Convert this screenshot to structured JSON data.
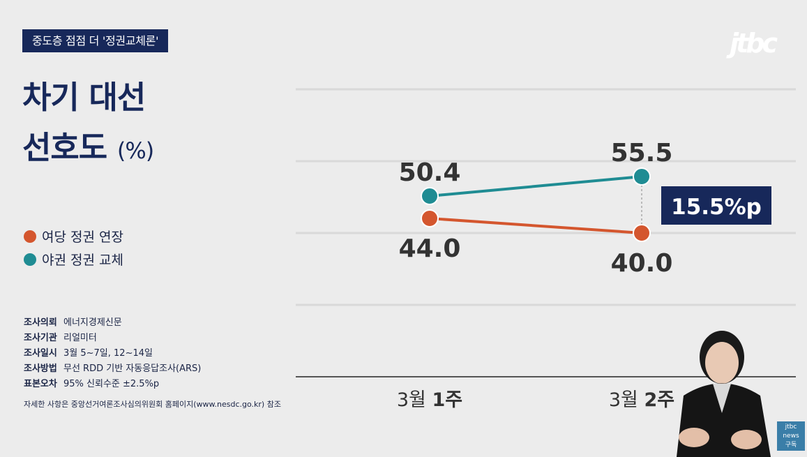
{
  "header_tag": "중도층 점점 더 '정권교체론'",
  "logo": "jtbc",
  "title": {
    "line1": "차기 대선",
    "line2": "선호도",
    "unit": "(%)"
  },
  "legend": [
    {
      "label": "여당 정권 연장",
      "color": "#d4562e"
    },
    {
      "label": "야권 정권 교체",
      "color": "#1f8c93"
    }
  ],
  "meta": [
    {
      "key": "조사의뢰",
      "value": "에너지경제신문"
    },
    {
      "key": "조사기관",
      "value": "리얼미터"
    },
    {
      "key": "조사일시",
      "value": "3월 5~7일, 12~14일"
    },
    {
      "key": "조사방법",
      "value": "무선 RDD 기반 자동응답조사(ARS)"
    },
    {
      "key": "표본오차",
      "value": "95% 신뢰수준 ±2.5%p"
    }
  ],
  "meta_note": "자세한 사항은 중앙선거여론조사심의위원회 홈페이지(www.nesdc.go.kr) 참조",
  "chart_data": {
    "type": "line",
    "categories": [
      "3월 1주",
      "3월 2주"
    ],
    "category_parts": [
      [
        "3월",
        "1주"
      ],
      [
        "3월",
        "2주"
      ]
    ],
    "series": [
      {
        "name": "여당 정권 연장",
        "values": [
          44.0,
          40.0
        ],
        "labels": [
          "44.0",
          "40.0"
        ],
        "color": "#d4562e"
      },
      {
        "name": "야권 정권 교체",
        "values": [
          50.4,
          55.5
        ],
        "labels": [
          "50.4",
          "55.5"
        ],
        "color": "#1f8c93"
      }
    ],
    "gap_annotation": "15.5%p",
    "grid": true
  },
  "badge": {
    "line1": "jtbc",
    "line2": "news",
    "line3": "구독"
  }
}
